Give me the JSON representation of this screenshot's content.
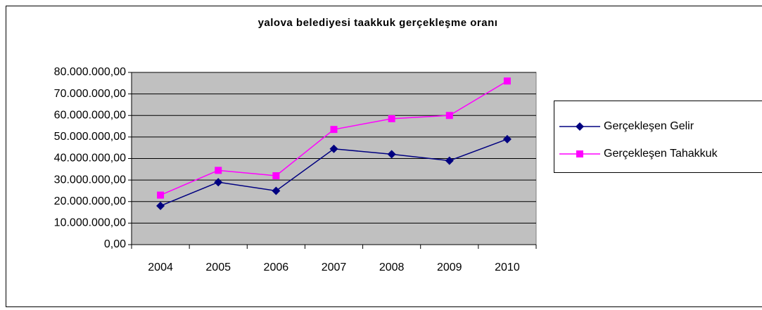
{
  "chart_data": {
    "type": "line",
    "title": "yalova belediyesi taakkuk gerçekleşme oranı",
    "categories": [
      "2004",
      "2005",
      "2006",
      "2007",
      "2008",
      "2009",
      "2010"
    ],
    "series": [
      {
        "name": "Gerçekleşen Gelir",
        "color": "#000080",
        "marker": "diamond",
        "values": [
          18000000,
          29000000,
          25000000,
          44500000,
          42000000,
          39000000,
          49000000
        ]
      },
      {
        "name": "Gerçekleşen Tahakkuk",
        "color": "#ff00ff",
        "marker": "square",
        "values": [
          23000000,
          34500000,
          32000000,
          53500000,
          58500000,
          60000000,
          76000000
        ]
      }
    ],
    "ylim": [
      0,
      80000000
    ],
    "yticks": [
      {
        "value": 0,
        "label": "0,00"
      },
      {
        "value": 10000000,
        "label": "10.000.000,00"
      },
      {
        "value": 20000000,
        "label": "20.000.000,00"
      },
      {
        "value": 30000000,
        "label": "30.000.000,00"
      },
      {
        "value": 40000000,
        "label": "40.000.000,00"
      },
      {
        "value": 50000000,
        "label": "50.000.000,00"
      },
      {
        "value": 60000000,
        "label": "60.000.000,00"
      },
      {
        "value": 70000000,
        "label": "70.000.000,00"
      },
      {
        "value": 80000000,
        "label": "80.000.000,00"
      }
    ],
    "grid": true,
    "plot_background": "#c0c0c0",
    "legend": "right"
  }
}
